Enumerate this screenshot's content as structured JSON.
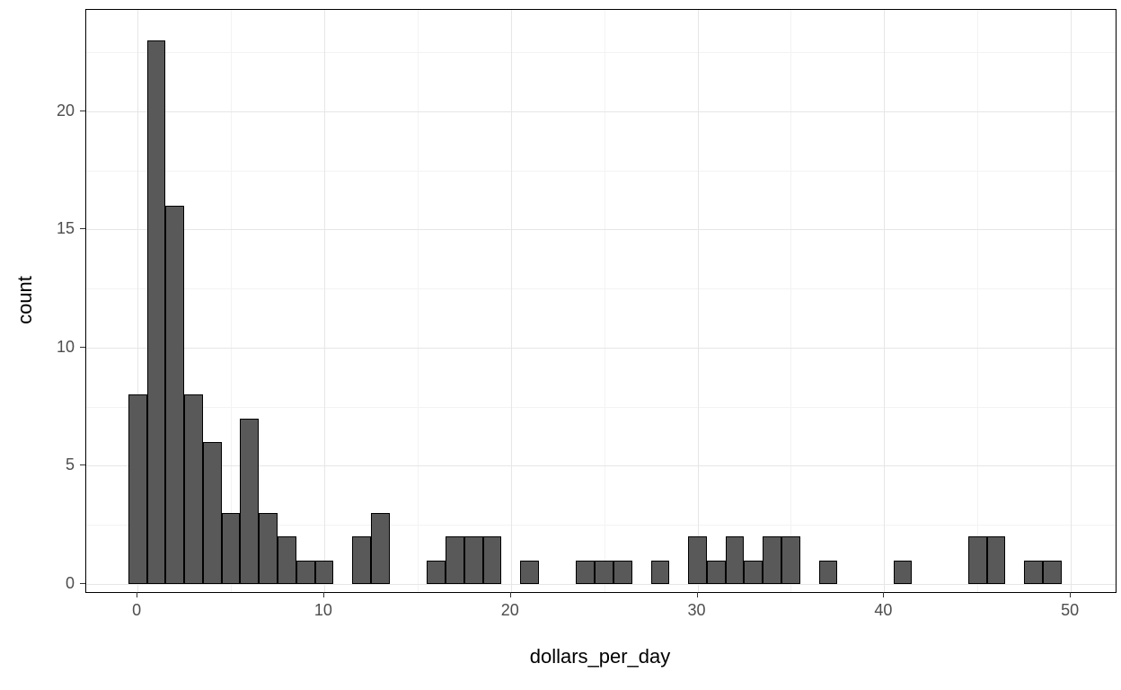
{
  "figure": {
    "background": "#ffffff",
    "panel_border_color": "#000000",
    "grid_major_color": "#e6e6e6",
    "grid_minor_color": "#f3f3f3",
    "tick_color": "#333333",
    "tick_label_color": "#4d4d4d"
  },
  "chart_data": {
    "type": "bar",
    "subtype": "histogram",
    "title": "",
    "xlabel": "dollars_per_day",
    "ylabel": "count",
    "bar_fill": "#595959",
    "bar_stroke": "#000000",
    "binwidth": 1,
    "bins": [
      {
        "x": 0,
        "count": 8
      },
      {
        "x": 1,
        "count": 23
      },
      {
        "x": 2,
        "count": 16
      },
      {
        "x": 3,
        "count": 8
      },
      {
        "x": 4,
        "count": 6
      },
      {
        "x": 5,
        "count": 3
      },
      {
        "x": 6,
        "count": 7
      },
      {
        "x": 7,
        "count": 3
      },
      {
        "x": 8,
        "count": 2
      },
      {
        "x": 9,
        "count": 1
      },
      {
        "x": 10,
        "count": 1
      },
      {
        "x": 12,
        "count": 2
      },
      {
        "x": 13,
        "count": 3
      },
      {
        "x": 16,
        "count": 1
      },
      {
        "x": 17,
        "count": 2
      },
      {
        "x": 18,
        "count": 2
      },
      {
        "x": 19,
        "count": 2
      },
      {
        "x": 21,
        "count": 1
      },
      {
        "x": 24,
        "count": 1
      },
      {
        "x": 25,
        "count": 1
      },
      {
        "x": 26,
        "count": 1
      },
      {
        "x": 28,
        "count": 1
      },
      {
        "x": 30,
        "count": 2
      },
      {
        "x": 31,
        "count": 1
      },
      {
        "x": 32,
        "count": 2
      },
      {
        "x": 33,
        "count": 1
      },
      {
        "x": 34,
        "count": 2
      },
      {
        "x": 35,
        "count": 2
      },
      {
        "x": 37,
        "count": 1
      },
      {
        "x": 41,
        "count": 1
      },
      {
        "x": 45,
        "count": 2
      },
      {
        "x": 46,
        "count": 2
      },
      {
        "x": 48,
        "count": 1
      },
      {
        "x": 49,
        "count": 1
      }
    ],
    "x_ticks": [
      0,
      10,
      20,
      30,
      40,
      50
    ],
    "y_ticks": [
      0,
      5,
      10,
      15,
      20
    ],
    "x_minor": [
      5,
      15,
      25,
      35,
      45
    ],
    "y_minor": [
      2.5,
      7.5,
      12.5,
      17.5,
      22.5
    ],
    "xlim": [
      -2.75,
      52.4
    ],
    "ylim": [
      -0.35,
      24.3
    ],
    "grid": true,
    "legend_position": "none"
  }
}
